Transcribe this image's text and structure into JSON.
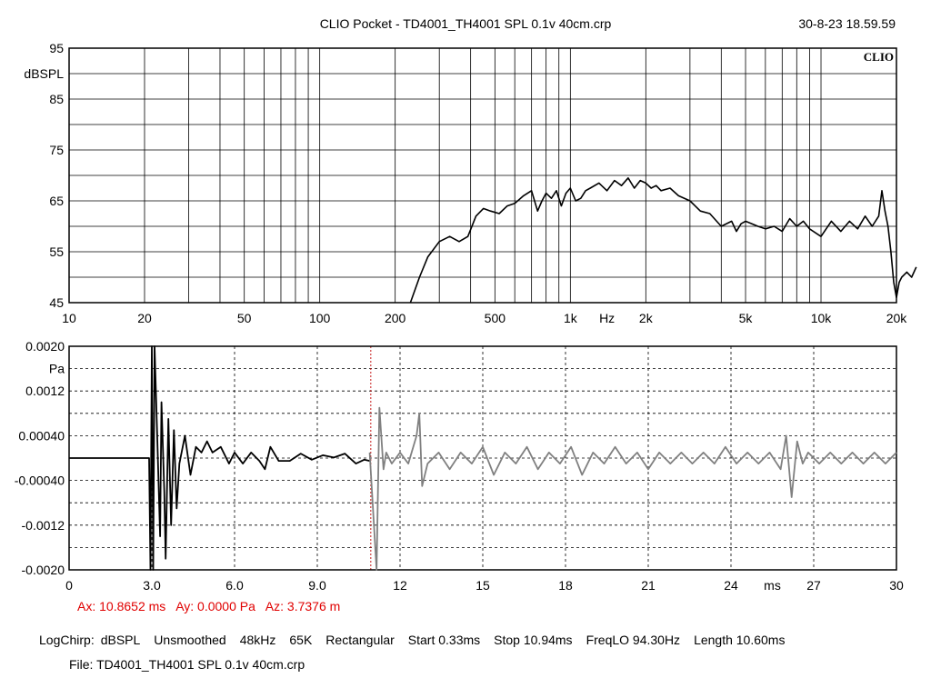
{
  "header": {
    "title": "CLIO Pocket - TD4001_TH4001 SPL 0.1v 40cm.crp",
    "datetime": "30-8-23 18.59.59"
  },
  "chart_data": [
    {
      "type": "line",
      "name": "frequency-response",
      "xscale": "log",
      "xlim": [
        10,
        20000
      ],
      "ylim": [
        45,
        95
      ],
      "ylabel": "dBSPL",
      "xlabel": "Hz",
      "logo": "CLIO",
      "x_ticks": [
        "10",
        "20",
        "50",
        "100",
        "200",
        "500",
        "1k",
        "2k",
        "5k",
        "10k",
        "20k"
      ],
      "x_tick_values": [
        10,
        20,
        50,
        100,
        200,
        500,
        1000,
        2000,
        5000,
        10000,
        20000
      ],
      "y_ticks": [
        "95",
        "85",
        "75",
        "65",
        "55",
        "45"
      ],
      "y_tick_values": [
        95,
        85,
        75,
        65,
        55,
        45
      ],
      "grid": true,
      "series": [
        {
          "color": "#000000",
          "x": [
            230,
            250,
            270,
            300,
            330,
            360,
            390,
            420,
            450,
            480,
            520,
            560,
            600,
            650,
            700,
            740,
            770,
            800,
            840,
            880,
            920,
            960,
            1000,
            1050,
            1100,
            1150,
            1200,
            1300,
            1400,
            1500,
            1600,
            1700,
            1800,
            1900,
            2000,
            2100,
            2200,
            2300,
            2500,
            2700,
            3000,
            3300,
            3600,
            4000,
            4400,
            4600,
            4800,
            5000,
            5300,
            5600,
            6000,
            6500,
            7000,
            7500,
            8000,
            8500,
            9000,
            10000,
            11000,
            12000,
            13000,
            14000,
            15000,
            16000,
            17000,
            17500,
            18000,
            18500,
            19000,
            19500,
            20000,
            20500,
            21000,
            22000,
            23000,
            24000
          ],
          "y": [
            45,
            50,
            54,
            57,
            58,
            57,
            58,
            62,
            63.5,
            63,
            62.5,
            64,
            64.5,
            66,
            67,
            63,
            65,
            66.5,
            65.5,
            67,
            64,
            66.5,
            67.5,
            65,
            65.5,
            67,
            67.5,
            68.5,
            67,
            69,
            68,
            69.5,
            67.5,
            69,
            68.5,
            67.5,
            68,
            67,
            67.5,
            66,
            65,
            63,
            62.5,
            60,
            61,
            59,
            60.5,
            61,
            60.5,
            60,
            59.5,
            60,
            59,
            61.5,
            60,
            61,
            59.5,
            58,
            61,
            59,
            61,
            59.5,
            62,
            60,
            62,
            67,
            63,
            60,
            55,
            49,
            46,
            49,
            50,
            51,
            50,
            52
          ]
        }
      ]
    },
    {
      "type": "line",
      "name": "impulse-response",
      "xlim": [
        0,
        30
      ],
      "ylim": [
        -0.002,
        0.002
      ],
      "xlabel": "ms",
      "ylabel": "Pa",
      "x_ticks": [
        "0",
        "3.0",
        "6.0",
        "9.0",
        "12",
        "15",
        "18",
        "21",
        "24",
        "27",
        "30"
      ],
      "x_tick_values": [
        0,
        3,
        6,
        9,
        12,
        15,
        18,
        21,
        24,
        27,
        30
      ],
      "y_ticks": [
        "0.0020",
        "0.0012",
        "0.00040",
        "-0.00040",
        "-0.0012",
        "-0.0020"
      ],
      "y_tick_values": [
        0.002,
        0.0012,
        0.0004,
        -0.0004,
        -0.0012,
        -0.002
      ],
      "grid": true,
      "window_start_ms": 0.33,
      "window_stop_ms": 10.94,
      "series": [
        {
          "color": "#000000",
          "x": [
            0,
            1.0,
            2.0,
            2.9,
            2.95,
            3.0,
            3.05,
            3.1,
            3.2,
            3.3,
            3.35,
            3.45,
            3.5,
            3.6,
            3.7,
            3.8,
            3.9,
            4.0,
            4.2,
            4.4,
            4.6,
            4.8,
            5.0,
            5.2,
            5.5,
            5.8,
            6.0,
            6.3,
            6.6,
            6.9,
            7.1,
            7.3,
            7.6,
            8.0,
            8.4,
            8.8,
            9.2,
            9.6,
            10.0,
            10.4,
            10.7,
            10.9
          ],
          "y": [
            0,
            0,
            0,
            0,
            -0.002,
            0.002,
            -0.002,
            0.002,
            0.0003,
            -0.0014,
            0.001,
            -0.0006,
            -0.0018,
            0.0007,
            -0.0012,
            0.0005,
            -0.0009,
            -0.0001,
            0.0004,
            -0.0003,
            0.0002,
            0.0001,
            0.0003,
            0.0001,
            0.0002,
            -0.0001,
            0.0001,
            -0.0001,
            0.0001,
            -5e-05,
            -0.0002,
            0.0002,
            -5e-05,
            -5e-05,
            8e-05,
            -3e-05,
            5e-05,
            1e-05,
            8e-05,
            -0.0001,
            -3e-05,
            -5e-05
          ]
        },
        {
          "color": "#808080",
          "x": [
            10.9,
            11.15,
            11.25,
            11.4,
            11.5,
            11.7,
            12.0,
            12.3,
            12.6,
            12.7,
            12.8,
            13.0,
            13.4,
            13.8,
            14.2,
            14.6,
            15.0,
            15.4,
            15.8,
            16.2,
            16.6,
            17.0,
            17.4,
            17.8,
            18.2,
            18.6,
            19.0,
            19.4,
            19.8,
            20.2,
            20.6,
            21.0,
            21.4,
            21.8,
            22.2,
            22.6,
            23.0,
            23.4,
            23.8,
            24.2,
            24.6,
            25.0,
            25.4,
            25.8,
            26.0,
            26.2,
            26.4,
            26.6,
            26.8,
            27.2,
            27.6,
            28.0,
            28.4,
            28.8,
            29.2,
            29.6,
            30.0
          ],
          "y": [
            0.0001,
            -0.002,
            0.0009,
            -0.0002,
            0.0001,
            -0.0001,
            0.0001,
            -0.0001,
            0.0004,
            0.0008,
            -0.0005,
            -0.0001,
            0.0001,
            -0.0002,
            0.0001,
            -0.0001,
            0.0002,
            -0.0003,
            0.0001,
            -0.0001,
            0.0002,
            -0.0002,
            0.0001,
            -0.0001,
            0.0002,
            -0.0003,
            0.0001,
            -0.0001,
            0.0002,
            -0.0001,
            0.0001,
            -0.0002,
            0.0001,
            -0.0001,
            0.0001,
            -0.0001,
            0.0001,
            -0.0001,
            0.0002,
            -0.0001,
            0.0001,
            -0.0001,
            0.0001,
            -0.0002,
            0.0004,
            -0.0007,
            0.0003,
            -0.0001,
            0.0001,
            -0.0001,
            0.0001,
            -0.0001,
            0.0001,
            -0.0001,
            0.0001,
            -0.0001,
            0.0001
          ]
        }
      ]
    }
  ],
  "cursor": {
    "ax": "Ax: 10.8652 ms",
    "ay": "Ay: 0.0000 Pa",
    "az": "Az: 3.7376 m"
  },
  "settings": {
    "items": [
      "LogChirp:",
      "dBSPL",
      "Unsmoothed",
      "48kHz",
      "65K",
      "Rectangular",
      "Start 0.33ms",
      "Stop 10.94ms",
      "FreqLO 94.30Hz",
      "Length 10.60ms"
    ]
  },
  "file": {
    "label": "File: TD4001_TH4001 SPL 0.1v 40cm.crp"
  }
}
